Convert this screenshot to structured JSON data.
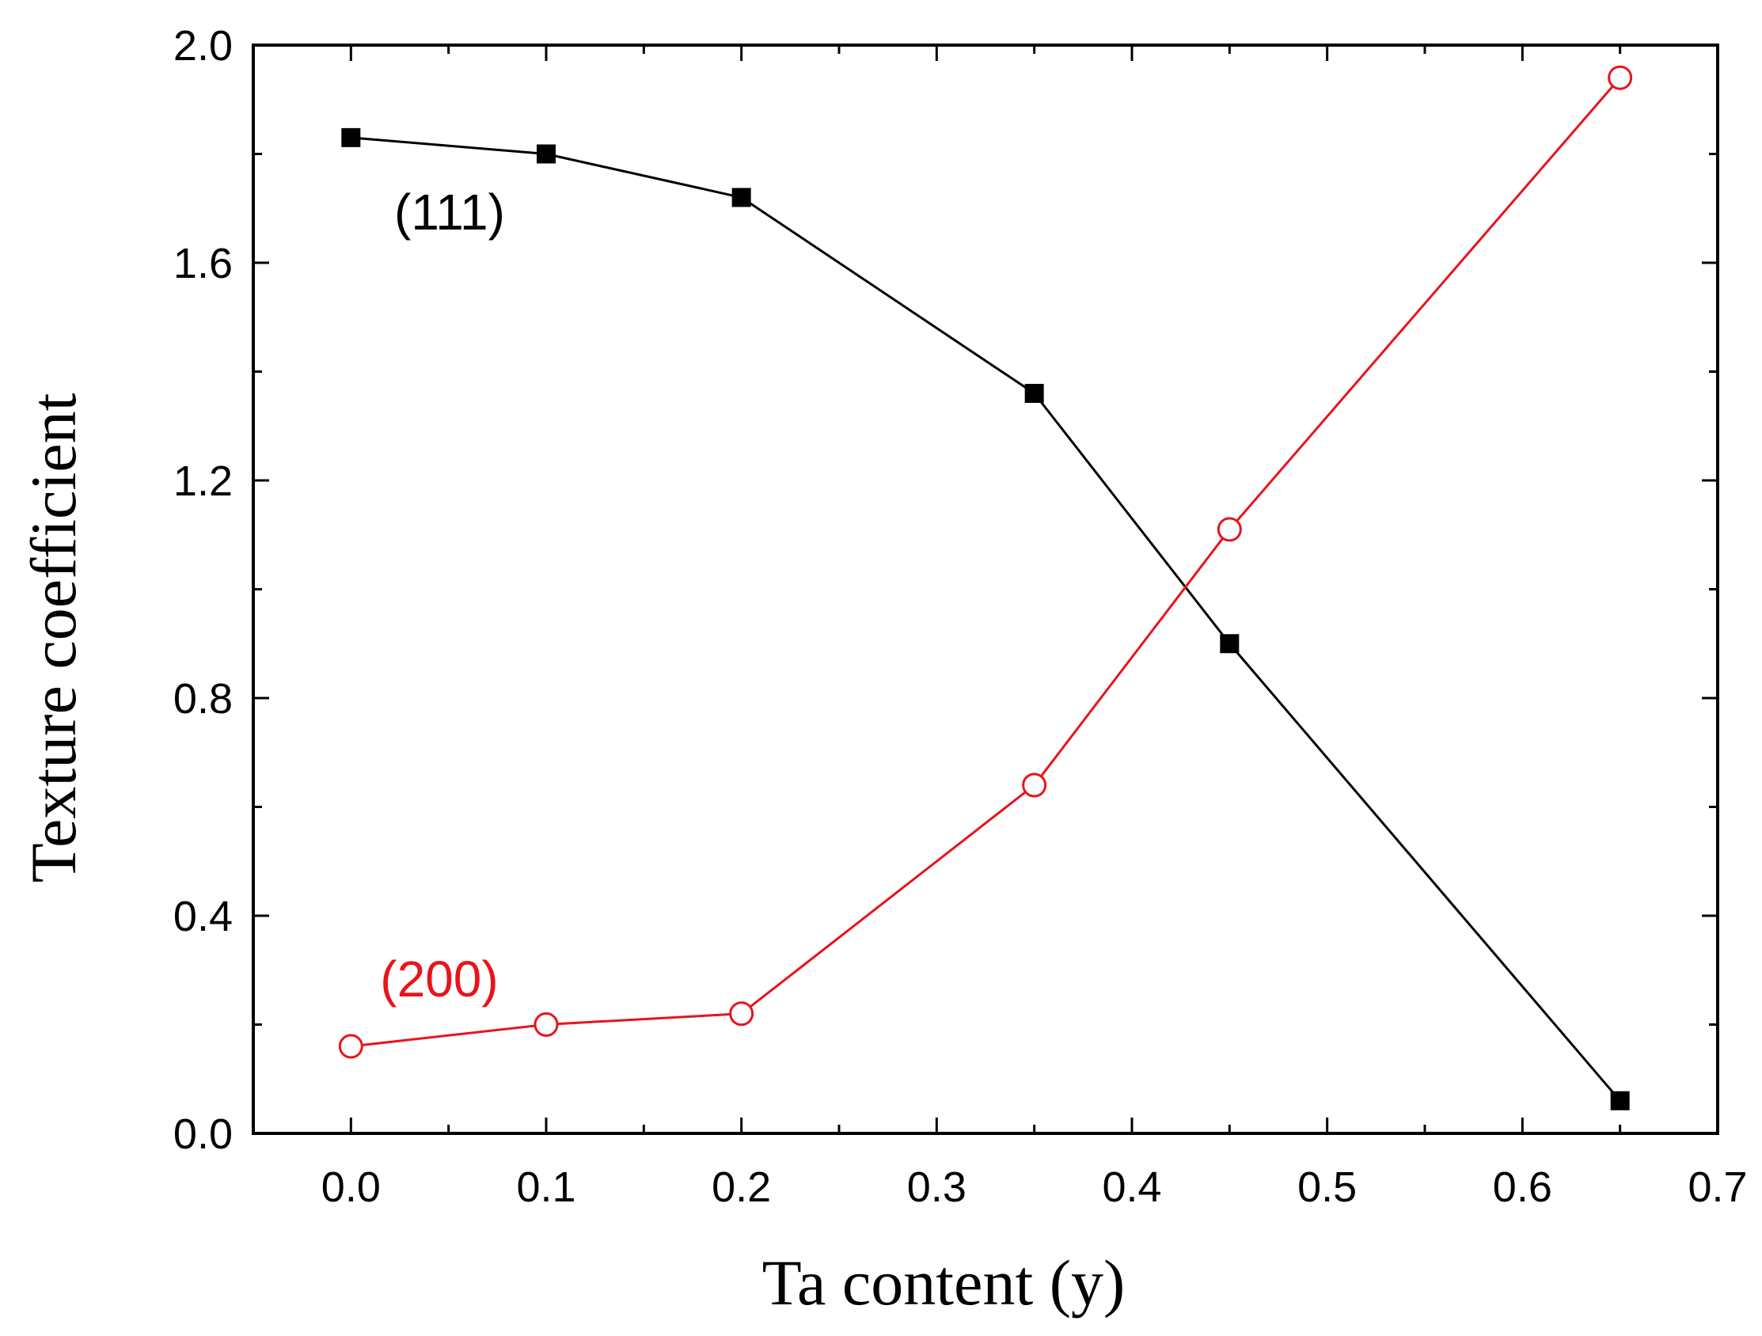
{
  "chart_data": {
    "type": "line",
    "xlabel": "Ta content (y)",
    "ylabel": "Texture coefficient",
    "xlim": [
      -0.05,
      0.7
    ],
    "ylim": [
      0.0,
      2.0
    ],
    "xticks": [
      0.0,
      0.1,
      0.2,
      0.3,
      0.4,
      0.5,
      0.6,
      0.7
    ],
    "xtick_labels": [
      "0.0",
      "0.1",
      "0.2",
      "0.3",
      "0.4",
      "0.5",
      "0.6",
      "0.7"
    ],
    "yticks": [
      0.0,
      0.4,
      0.8,
      1.2,
      1.6,
      2.0
    ],
    "ytick_labels": [
      "0.0",
      "0.4",
      "0.8",
      "1.2",
      "1.6",
      "2.0"
    ],
    "grid": false,
    "series": [
      {
        "name": "(111)",
        "color": "#000000",
        "marker": "filled-square",
        "x": [
          0.0,
          0.1,
          0.2,
          0.35,
          0.45,
          0.65
        ],
        "y": [
          1.83,
          1.8,
          1.72,
          1.36,
          0.9,
          0.06
        ]
      },
      {
        "name": "(200)",
        "color": "#e8141b",
        "marker": "open-circle",
        "x": [
          0.0,
          0.1,
          0.2,
          0.35,
          0.45,
          0.65
        ],
        "y": [
          0.16,
          0.2,
          0.22,
          0.64,
          1.11,
          1.94
        ]
      }
    ]
  }
}
